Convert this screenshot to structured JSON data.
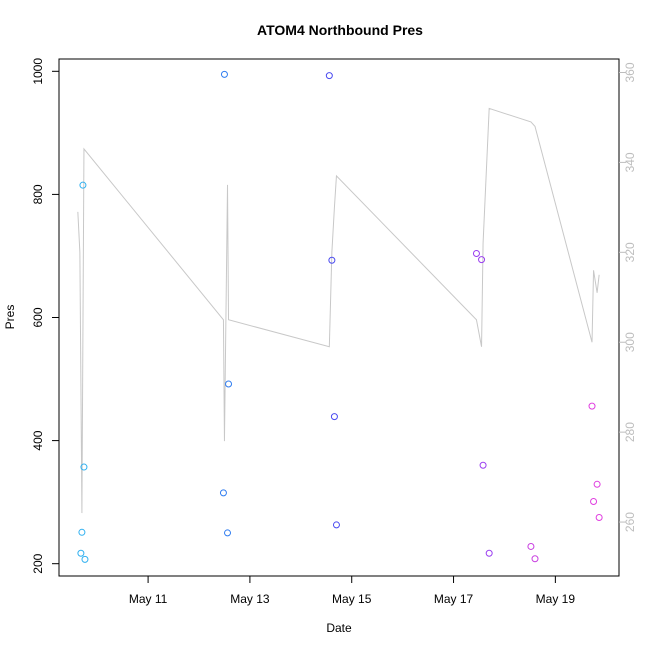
{
  "chart_data": {
    "type": "scatter",
    "title": "ATOM4 Northbound Pres",
    "xlabel": "Date",
    "ylabel": "Pres",
    "x_ticks": [
      "May 11",
      "May 13",
      "May 15",
      "May 17",
      "May 19"
    ],
    "x_tick_days": [
      11,
      13,
      15,
      17,
      19
    ],
    "xlim_days": [
      9.25,
      20.25
    ],
    "y_ticks": [
      200,
      400,
      600,
      800,
      1000
    ],
    "ylim": [
      180,
      1020
    ],
    "y2_ticks": [
      260,
      280,
      300,
      320,
      340,
      360
    ],
    "y2lim": [
      248,
      363
    ],
    "grid": false,
    "point_series": {
      "axis": "left",
      "marker": "open-circle",
      "points": [
        {
          "x": 9.68,
          "y": 217,
          "color": "#2fb0f0"
        },
        {
          "x": 9.7,
          "y": 251,
          "color": "#2fb0f0"
        },
        {
          "x": 9.72,
          "y": 815,
          "color": "#2fb0f0"
        },
        {
          "x": 9.74,
          "y": 357,
          "color": "#2fb0f0"
        },
        {
          "x": 9.76,
          "y": 207,
          "color": "#2fb0f0"
        },
        {
          "x": 12.48,
          "y": 315,
          "color": "#2f7cf0"
        },
        {
          "x": 12.5,
          "y": 995,
          "color": "#2f7cf0"
        },
        {
          "x": 12.56,
          "y": 250,
          "color": "#2f7cf0"
        },
        {
          "x": 12.58,
          "y": 492,
          "color": "#2f7cf0"
        },
        {
          "x": 14.56,
          "y": 993,
          "color": "#4a4af0"
        },
        {
          "x": 14.61,
          "y": 693,
          "color": "#4a4af0"
        },
        {
          "x": 14.66,
          "y": 439,
          "color": "#4a4af0"
        },
        {
          "x": 14.7,
          "y": 263,
          "color": "#4a4af0"
        },
        {
          "x": 17.45,
          "y": 704,
          "color": "#9a3ef0"
        },
        {
          "x": 17.55,
          "y": 694,
          "color": "#9a3ef0"
        },
        {
          "x": 17.58,
          "y": 360,
          "color": "#9a3ef0"
        },
        {
          "x": 17.7,
          "y": 217,
          "color": "#9a3ef0"
        },
        {
          "x": 18.52,
          "y": 228,
          "color": "#c83ee0"
        },
        {
          "x": 18.6,
          "y": 208,
          "color": "#c83ee0"
        },
        {
          "x": 19.72,
          "y": 456,
          "color": "#e03ee0"
        },
        {
          "x": 19.75,
          "y": 301,
          "color": "#e03ee0"
        },
        {
          "x": 19.82,
          "y": 329,
          "color": "#e03ee0"
        },
        {
          "x": 19.86,
          "y": 275,
          "color": "#e03ee0"
        }
      ]
    },
    "line_series": {
      "axis": "right",
      "color": "#c8c8c8",
      "points": [
        [
          9.62,
          329
        ],
        [
          9.66,
          320
        ],
        [
          9.7,
          262
        ],
        [
          9.74,
          343
        ],
        [
          12.48,
          305
        ],
        [
          12.5,
          278
        ],
        [
          12.56,
          335
        ],
        [
          12.58,
          305
        ],
        [
          14.56,
          299
        ],
        [
          14.61,
          320
        ],
        [
          14.66,
          330
        ],
        [
          14.7,
          337
        ],
        [
          17.45,
          305
        ],
        [
          17.55,
          299
        ],
        [
          17.58,
          322
        ],
        [
          17.7,
          352
        ],
        [
          18.52,
          349
        ],
        [
          18.6,
          348
        ],
        [
          19.72,
          300
        ],
        [
          19.75,
          316
        ],
        [
          19.82,
          311
        ],
        [
          19.86,
          315
        ]
      ]
    }
  }
}
